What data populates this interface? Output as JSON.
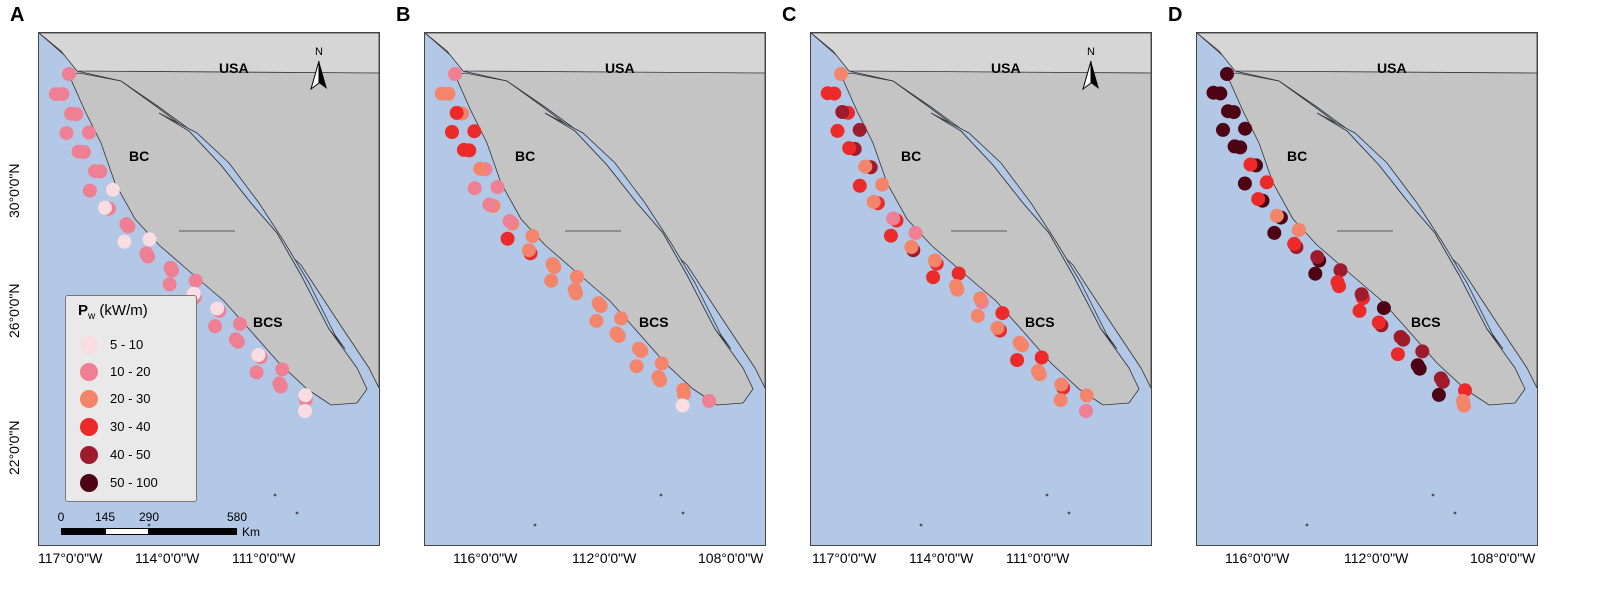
{
  "figure": {
    "panels": [
      {
        "letter": "A",
        "lon_ticks": [
          "117°0'0\"W",
          "114°0'0\"W",
          "111°0'0\"W"
        ],
        "lat_ticks": [
          "30°0'0\"N",
          "26°0'0\"N",
          "22°0'0\"N"
        ],
        "region_labels": [
          "USA",
          "BC",
          "BCS"
        ],
        "has_north_arrow": true,
        "north_label": "N",
        "point_classes": [
          1,
          1,
          1,
          1,
          1,
          1,
          1,
          1,
          1,
          1,
          1,
          1,
          0,
          1,
          0,
          1,
          1,
          0,
          0,
          1,
          1,
          1,
          1,
          1,
          1,
          1,
          0,
          1,
          0,
          1,
          1,
          1,
          1,
          1,
          0,
          1,
          1,
          1,
          1,
          1,
          0,
          0
        ]
      },
      {
        "letter": "B",
        "lon_ticks": [
          "116°0'0\"W",
          "112°0'0\"W",
          "108°0'0\"W"
        ],
        "lat_ticks": [],
        "region_labels": [
          "USA",
          "BC",
          "BCS"
        ],
        "has_north_arrow": false,
        "point_classes": [
          1,
          2,
          2,
          2,
          3,
          3,
          3,
          3,
          3,
          1,
          2,
          1,
          1,
          2,
          1,
          2,
          1,
          3,
          2,
          3,
          2,
          2,
          2,
          2,
          2,
          2,
          2,
          2,
          2,
          2,
          2,
          2,
          2,
          2,
          2,
          2,
          2,
          2,
          2,
          2,
          2,
          0,
          1
        ]
      },
      {
        "letter": "C",
        "lon_ticks": [
          "117°0'0\"W",
          "114°0'0\"W",
          "111°0'0\"W"
        ],
        "lat_ticks": [],
        "region_labels": [
          "USA",
          "BC",
          "BCS"
        ],
        "has_north_arrow": true,
        "north_label": "N",
        "point_classes": [
          2,
          3,
          3,
          3,
          4,
          3,
          4,
          4,
          3,
          4,
          2,
          3,
          2,
          3,
          2,
          3,
          1,
          3,
          1,
          4,
          2,
          3,
          2,
          3,
          3,
          2,
          2,
          1,
          2,
          2,
          3,
          3,
          2,
          2,
          2,
          3,
          3,
          2,
          2,
          3,
          2,
          2,
          2,
          1
        ]
      },
      {
        "letter": "D",
        "lon_ticks": [
          "116°0'0\"W",
          "112°0'0\"W",
          "108°0'0\"W"
        ],
        "lat_ticks": [],
        "region_labels": [
          "USA",
          "BC",
          "BCS"
        ],
        "has_north_arrow": false,
        "point_classes": [
          5,
          5,
          5,
          5,
          5,
          5,
          5,
          5,
          5,
          5,
          3,
          5,
          3,
          5,
          3,
          5,
          2,
          5,
          2,
          4,
          3,
          5,
          4,
          5,
          4,
          3,
          3,
          3,
          4,
          3,
          5,
          4,
          3,
          4,
          4,
          3,
          4,
          5,
          5,
          4,
          4,
          5,
          3,
          2,
          2
        ]
      }
    ]
  },
  "legend": {
    "title_main": "P",
    "title_sub": "w",
    "title_unit": " (kW/m)",
    "classes": [
      {
        "label": "5 - 10",
        "color": "#f9dde3"
      },
      {
        "label": "10 - 20",
        "color": "#ef7f93"
      },
      {
        "label": "20 - 30",
        "color": "#f4846a"
      },
      {
        "label": "30 - 40",
        "color": "#ec2a2a"
      },
      {
        "label": "40 - 50",
        "color": "#9e1b2c"
      },
      {
        "label": "50 - 100",
        "color": "#4d0313"
      }
    ]
  },
  "scalebar": {
    "labels": [
      "0",
      "145",
      "290",
      "580"
    ],
    "unit": "Km"
  },
  "colors": {
    "ocean": "#b3c8e6",
    "land": "#c4c4c4",
    "usa": "#d6d6d6",
    "gulf": "#b3c8e6",
    "border": "#333333"
  }
}
